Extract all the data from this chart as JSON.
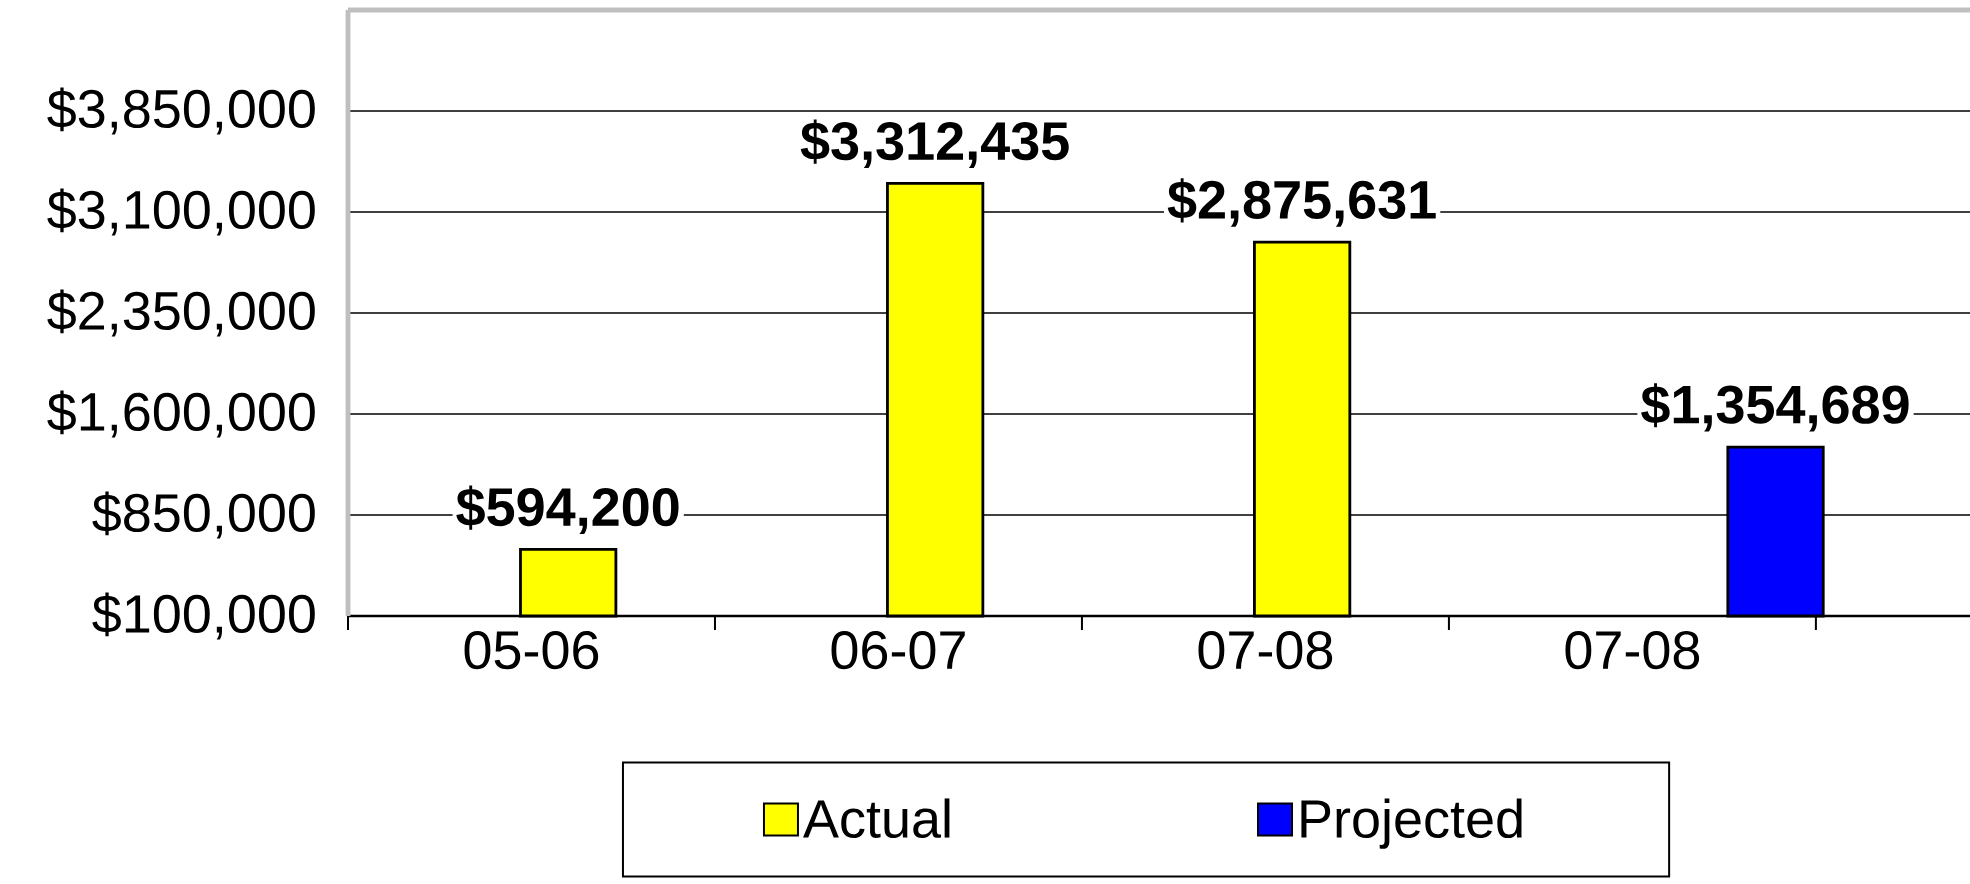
{
  "chart_data": {
    "type": "bar",
    "categories": [
      "05-06",
      "06-07",
      "07-08",
      "07-08"
    ],
    "series": [
      {
        "name": "Actual",
        "color": "#ffff00",
        "values": [
          594200,
          3312435,
          2875631,
          null
        ],
        "value_labels": [
          "$594,200",
          "$3,312,435",
          "$2,875,631",
          null
        ]
      },
      {
        "name": "Projected",
        "color": "#0000ff",
        "values": [
          null,
          null,
          null,
          1354689
        ],
        "value_labels": [
          null,
          null,
          null,
          "$1,354,689"
        ]
      }
    ],
    "ylim": [
      100000,
      4600000
    ],
    "yticks": [
      {
        "value": 100000,
        "label": "$100,000"
      },
      {
        "value": 850000,
        "label": "$850,000"
      },
      {
        "value": 1600000,
        "label": "$1,600,000"
      },
      {
        "value": 2350000,
        "label": "$2,350,000"
      },
      {
        "value": 3100000,
        "label": "$3,100,000"
      },
      {
        "value": 3850000,
        "label": "$3,850,000"
      }
    ],
    "grid": "y",
    "legend": "bottom"
  }
}
